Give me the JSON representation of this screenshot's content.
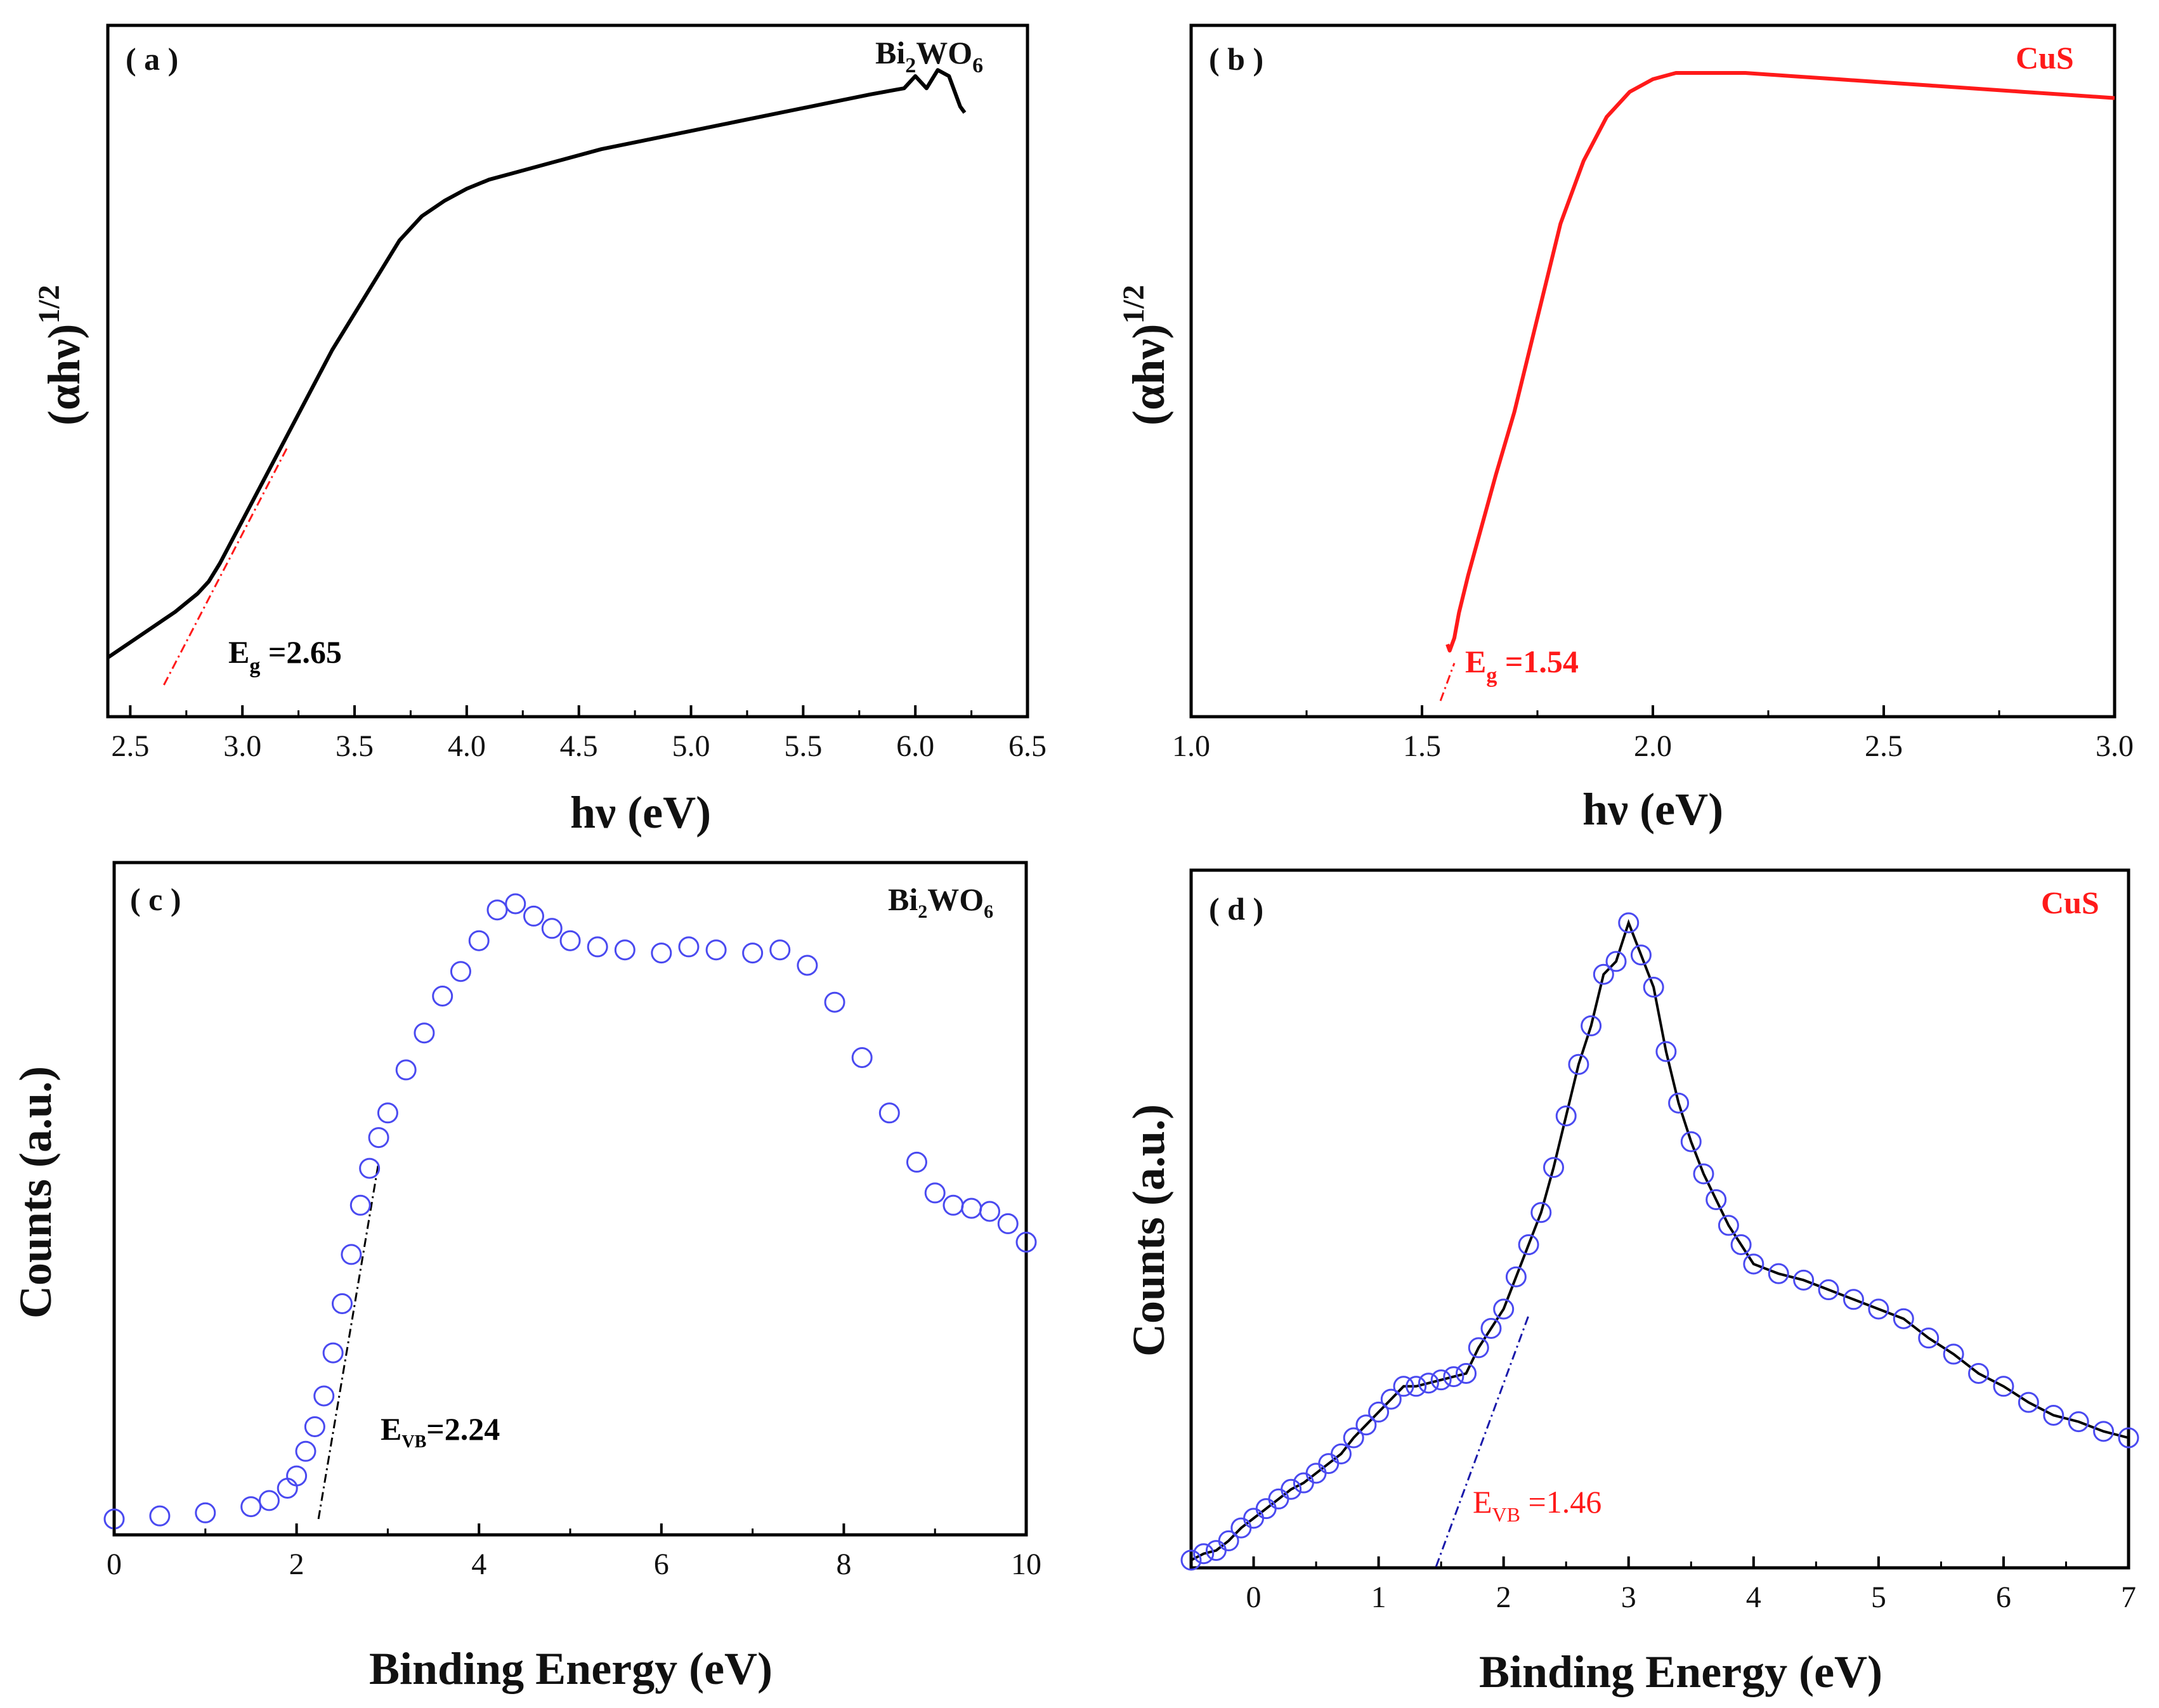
{
  "figure": {
    "panels": [
      {
        "id": "a",
        "panel_label": "( a )",
        "sample_base": "Bi",
        "sample_sub1": "2",
        "sample_mid": "WO",
        "sample_sub2": "6"
      },
      {
        "id": "b",
        "panel_label": "( b )",
        "sample_base": "CuS",
        "sample_sub1": "",
        "sample_mid": "",
        "sample_sub2": ""
      },
      {
        "id": "c",
        "panel_label": "( c )",
        "sample_base": "Bi",
        "sample_sub1": "2",
        "sample_mid": "WO",
        "sample_sub2": "6"
      },
      {
        "id": "d",
        "panel_label": "( d )",
        "sample_base": "CuS",
        "sample_sub1": "",
        "sample_mid": "",
        "sample_sub2": ""
      }
    ]
  },
  "colors": {
    "black": "#000000",
    "red": "#ff1a1a",
    "blue": "#4a4af0",
    "navy": "#1a1aaa"
  },
  "chart_data": [
    {
      "id": "a",
      "type": "line",
      "title": "",
      "xlabel": "hν (eV)",
      "ylabel_base": "(αhν)",
      "ylabel_sup": "1/2",
      "xlim": [
        2.4,
        6.5
      ],
      "ylim": [
        0,
        100
      ],
      "xticks": [
        2.5,
        3.0,
        3.5,
        4.0,
        4.5,
        5.0,
        5.5,
        6.0,
        6.5
      ],
      "xtick_labels": [
        "2.5",
        "3.0",
        "3.5",
        "4.0",
        "4.5",
        "5.0",
        "5.5",
        "6.0",
        "6.5"
      ],
      "series": [
        {
          "name": "Bi2WO6",
          "color": "#000000",
          "x": [
            2.4,
            2.5,
            2.6,
            2.7,
            2.8,
            2.85,
            2.9,
            3.0,
            3.1,
            3.2,
            3.3,
            3.4,
            3.5,
            3.6,
            3.7,
            3.8,
            3.9,
            4.0,
            4.1,
            4.2,
            4.4,
            4.6,
            4.8,
            5.0,
            5.2,
            5.4,
            5.6,
            5.8,
            5.95,
            6.0,
            6.05,
            6.1,
            6.15,
            6.2,
            6.22
          ],
          "y": [
            4.5,
            7,
            9.5,
            12,
            15,
            17,
            20,
            27,
            34,
            41,
            48,
            55,
            61,
            67,
            73,
            77,
            79.5,
            81.5,
            83,
            84,
            86,
            88,
            89.5,
            91,
            92.5,
            94,
            95.5,
            97,
            98,
            100,
            98,
            101,
            100,
            95,
            94
          ]
        }
      ],
      "fit": {
        "color": "#ff1a1a",
        "x": [
          2.65,
          3.2
        ],
        "y": [
          0,
          39
        ]
      },
      "annotation": {
        "base": "E",
        "sub": "g",
        "value": " =2.65",
        "color": "#000000"
      }
    },
    {
      "id": "b",
      "type": "line",
      "title": "",
      "xlabel": "hν (eV)",
      "ylabel_base": "(αhν)",
      "ylabel_sup": "1/2",
      "xlim": [
        1.0,
        3.0
      ],
      "ylim": [
        0,
        100
      ],
      "xticks": [
        1.0,
        1.5,
        2.0,
        2.5,
        3.0
      ],
      "xtick_labels": [
        "1.0",
        "1.5",
        "2.0",
        "2.5",
        "3.0"
      ],
      "series": [
        {
          "name": "CuS",
          "color": "#ff1a1a",
          "x": [
            1.555,
            1.56,
            1.57,
            1.58,
            1.6,
            1.63,
            1.66,
            1.7,
            1.75,
            1.8,
            1.85,
            1.9,
            1.95,
            2.0,
            2.05,
            2.1,
            2.2,
            2.3,
            2.4,
            2.5,
            2.6,
            2.7,
            2.8,
            2.9,
            3.0
          ],
          "y": [
            9,
            8,
            10,
            14,
            20,
            28,
            36,
            46,
            61,
            76,
            86,
            93,
            97,
            99,
            100,
            100,
            100,
            99.5,
            99,
            98.5,
            98,
            97.5,
            97,
            96.5,
            96
          ]
        }
      ],
      "fit": {
        "color": "#ff1a1a",
        "x": [
          1.54,
          1.57
        ],
        "y": [
          0,
          6
        ]
      },
      "annotation": {
        "base": "E",
        "sub": "g",
        "value": " =1.54",
        "color": "#ff1a1a"
      }
    },
    {
      "id": "c",
      "type": "scatter",
      "title": "",
      "xlabel": "Binding Energy (eV)",
      "ylabel": "Counts (a.u.)",
      "xlim": [
        0,
        10
      ],
      "ylim": [
        0,
        100
      ],
      "xticks": [
        0,
        2,
        4,
        6,
        8,
        10
      ],
      "xtick_labels": [
        "0",
        "2",
        "4",
        "6",
        "8",
        "10"
      ],
      "series": [
        {
          "name": "Bi2WO6",
          "color": "#4a4af0",
          "x": [
            0.0,
            0.5,
            1.0,
            1.5,
            1.7,
            1.9,
            2.0,
            2.1,
            2.2,
            2.3,
            2.4,
            2.5,
            2.6,
            2.7,
            2.8,
            2.9,
            3.0,
            3.2,
            3.4,
            3.6,
            3.8,
            4.0,
            4.2,
            4.4,
            4.6,
            4.8,
            5.0,
            5.3,
            5.6,
            6.0,
            6.3,
            6.6,
            7.0,
            7.3,
            7.6,
            7.9,
            8.2,
            8.5,
            8.8,
            9.0,
            9.2,
            9.4,
            9.6,
            9.8,
            10.0
          ],
          "y": [
            0,
            0.5,
            1,
            2,
            3,
            5,
            7,
            11,
            15,
            20,
            27,
            35,
            43,
            51,
            57,
            62,
            66,
            73,
            79,
            85,
            89,
            94,
            99,
            100,
            98,
            96,
            94,
            93,
            92.5,
            92,
            93,
            92.5,
            92,
            92.5,
            90,
            84,
            75,
            66,
            58,
            53,
            51,
            50.5,
            50,
            48,
            45
          ]
        }
      ],
      "fit": {
        "color": "#000000",
        "x": [
          2.24,
          2.9
        ],
        "y": [
          0,
          58
        ]
      },
      "annotation": {
        "base": "E",
        "sub": "VB",
        "value": "=2.24",
        "color": "#000000"
      }
    },
    {
      "id": "d",
      "type": "scatter",
      "title": "",
      "xlabel": "Binding Energy (eV)",
      "ylabel": "Counts (a.u.)",
      "xlim": [
        -0.5,
        7
      ],
      "ylim": [
        0,
        100
      ],
      "xticks": [
        0,
        1,
        2,
        3,
        4,
        5,
        6,
        7
      ],
      "xtick_labels": [
        "0",
        "1",
        "2",
        "3",
        "4",
        "5",
        "6",
        "7"
      ],
      "series": [
        {
          "name": "CuS",
          "color": "#4a4af0",
          "x": [
            -0.5,
            -0.4,
            -0.3,
            -0.2,
            -0.1,
            0.0,
            0.1,
            0.2,
            0.3,
            0.4,
            0.5,
            0.6,
            0.7,
            0.8,
            0.9,
            1.0,
            1.1,
            1.2,
            1.3,
            1.4,
            1.5,
            1.6,
            1.7,
            1.8,
            1.9,
            2.0,
            2.1,
            2.2,
            2.3,
            2.4,
            2.5,
            2.6,
            2.7,
            2.8,
            2.9,
            3.0,
            3.1,
            3.2,
            3.3,
            3.4,
            3.5,
            3.6,
            3.7,
            3.8,
            3.9,
            4.0,
            4.2,
            4.4,
            4.6,
            4.8,
            5.0,
            5.2,
            5.4,
            5.6,
            5.8,
            6.0,
            6.2,
            6.4,
            6.6,
            6.8,
            7.0
          ],
          "y": [
            1,
            2,
            2.5,
            4,
            6,
            7.5,
            9,
            10.5,
            12,
            13,
            14.5,
            16,
            17.5,
            20,
            22,
            24,
            26,
            28,
            28,
            28.5,
            29,
            29.5,
            30,
            34,
            37,
            40,
            45,
            50,
            55,
            62,
            70,
            78,
            84,
            92,
            94,
            100,
            95,
            90,
            80,
            72,
            66,
            61,
            57,
            53,
            50,
            47,
            45.5,
            44.5,
            43,
            41.5,
            40,
            38.5,
            35.5,
            33,
            30,
            28,
            25.5,
            23.5,
            22.5,
            21,
            20
          ]
        }
      ],
      "fit": {
        "color": "#1a1aaa",
        "x": [
          1.46,
          2.2
        ],
        "y": [
          0,
          39
        ]
      },
      "annotation": {
        "base": "E",
        "sub": "VB",
        "value": " =1.46",
        "color": "#ff1a1a"
      }
    }
  ]
}
